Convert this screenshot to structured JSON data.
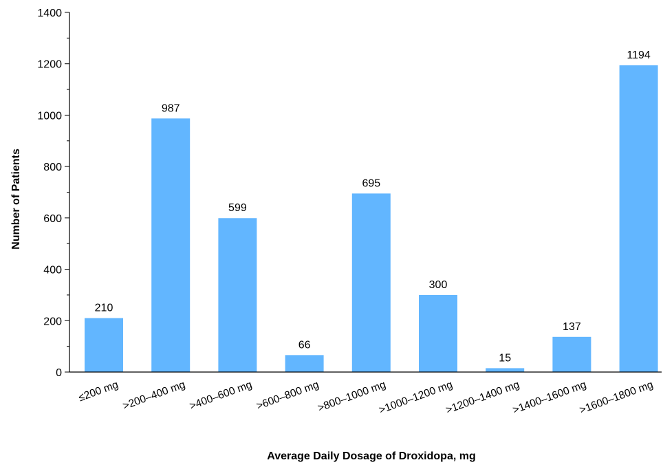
{
  "chart_data": {
    "type": "bar",
    "title": "",
    "xlabel": "Average Daily Dosage of Droxidopa, mg",
    "ylabel": "Number of Patients",
    "categories": [
      "≤200 mg",
      ">200–400 mg",
      ">400–600 mg",
      ">600–800 mg",
      ">800–1000 mg",
      ">1000–1200 mg",
      ">1200–1400 mg",
      ">1400–1600 mg",
      ">1600–1800 mg"
    ],
    "values": [
      210,
      987,
      599,
      66,
      695,
      300,
      15,
      137,
      1194
    ],
    "data_labels": [
      "210",
      "987",
      "599",
      "66",
      "695",
      "300",
      "15",
      "137",
      "1194"
    ],
    "ylim": [
      0,
      1400
    ],
    "y_ticks": [
      0,
      200,
      400,
      600,
      800,
      1000,
      1200,
      1400
    ],
    "y_tick_labels": [
      "0",
      "200",
      "400",
      "600",
      "800",
      "1000",
      "1200",
      "1400"
    ],
    "y_minor_step": 100,
    "bar_color": "#62b6ff",
    "grid": false,
    "legend": "none"
  }
}
